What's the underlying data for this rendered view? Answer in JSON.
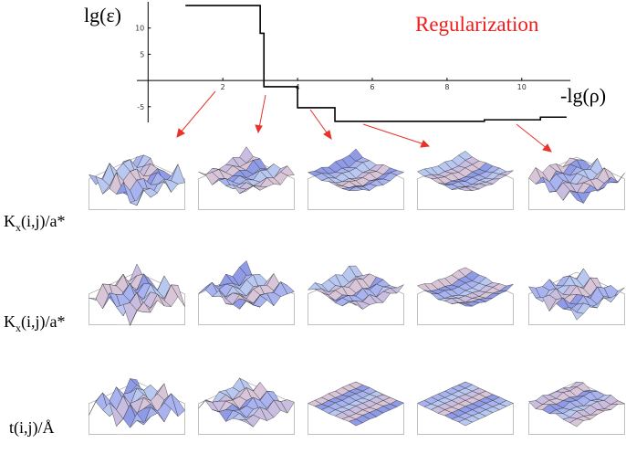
{
  "chart_data": {
    "type": "line",
    "title": "Regularization",
    "y_label": "lg(ε)",
    "x_label": "-lg(ρ)",
    "x": [
      1,
      3,
      3,
      3.1,
      3.1,
      4,
      4,
      5,
      5,
      9,
      9,
      10.5,
      10.5,
      11.2
    ],
    "series": [
      {
        "color": "#000000",
        "values": [
          14.3,
          14.3,
          9,
          9,
          -1.2,
          -1.2,
          -5.2,
          -5.2,
          -7.8,
          -7.8,
          -7.5,
          -7.5,
          -7,
          -7
        ]
      }
    ],
    "xlim": [
      -0.3,
      11.3
    ],
    "ylim": [
      -8,
      15
    ],
    "xticks": [
      2,
      4,
      6,
      8,
      10
    ],
    "yticks": [
      -5,
      5,
      10
    ],
    "grid": false
  },
  "row_labels": [
    {
      "main": "K",
      "sub": "x",
      "rest": "(i,j)/a*"
    },
    {
      "main": "K",
      "sub": "x",
      "rest": "(i,j)/a*"
    },
    {
      "main": "t(i,j)/Å"
    }
  ]
}
